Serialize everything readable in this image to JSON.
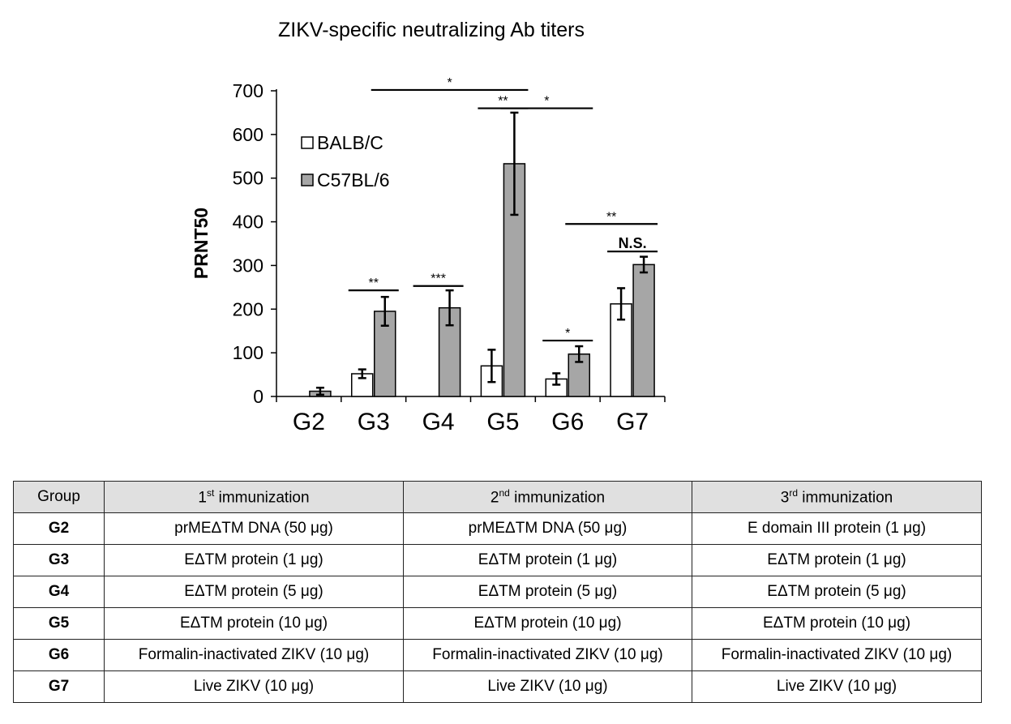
{
  "chart_data": {
    "type": "bar",
    "title": "ZIKV-specific neutralizing Ab titers",
    "ylabel": "PRNT50",
    "xlabel": "",
    "ylim": [
      0,
      700
    ],
    "yticks": [
      0,
      100,
      200,
      300,
      400,
      500,
      600,
      700
    ],
    "categories": [
      "G2",
      "G3",
      "G4",
      "G5",
      "G6",
      "G7"
    ],
    "legend_position": "top-left",
    "series": [
      {
        "name": "BALB/C",
        "color": "#ffffff",
        "values": [
          0,
          52,
          0,
          70,
          40,
          212
        ],
        "errors": [
          0,
          10,
          0,
          37,
          13,
          36
        ]
      },
      {
        "name": "C57BL/6",
        "color": "#a6a6a6",
        "values": [
          12,
          195,
          203,
          533,
          97,
          302
        ],
        "errors": [
          8,
          33,
          40,
          117,
          18,
          18
        ]
      }
    ],
    "annotations": [
      {
        "label": "**",
        "from": "G3-BALB/C",
        "to": "G3-C57BL/6",
        "y": 243
      },
      {
        "label": "***",
        "from": "G4-BALB/C",
        "to": "G4-C57BL/6",
        "y": 253
      },
      {
        "label": "*",
        "from": "G6-BALB/C",
        "to": "G6-C57BL/6",
        "y": 128
      },
      {
        "label": "N.S.",
        "from": "G7-BALB/C",
        "to": "G7-C57BL/6",
        "y": 332
      },
      {
        "label": "**",
        "from": "G5-BALB/C",
        "to": "G5-C57BL/6",
        "y": 660
      },
      {
        "label": "*",
        "from": "G3-C57BL/6",
        "to": "G5-C57BL/6",
        "y": 702
      },
      {
        "label": "*",
        "from": "G5-C57BL/6",
        "to": "G6-C57BL/6",
        "y": 660
      },
      {
        "label": "**",
        "from": "G6-C57BL/6",
        "to": "G7-C57BL/6",
        "y": 395
      }
    ]
  },
  "table": {
    "headers": {
      "group": "Group",
      "first_num": "1",
      "first_sup": "st",
      "first_rest": " immunization",
      "second_num": "2",
      "second_sup": "nd",
      "second_rest": " immunization",
      "third_num": "3",
      "third_sup": "rd",
      "third_rest": " immunization"
    },
    "rows": [
      {
        "group": "G2",
        "first": "prMEΔTM DNA (50 μg)",
        "second": "prMEΔTM DNA (50 μg)",
        "third": "E domain III protein  (1 μg)"
      },
      {
        "group": "G3",
        "first": "EΔTM protein (1 μg)",
        "second": "EΔTM protein (1 μg)",
        "third": "EΔTM protein (1 μg)"
      },
      {
        "group": "G4",
        "first": "EΔTM protein (5 μg)",
        "second": "EΔTM protein (5 μg)",
        "third": "EΔTM protein (5 μg)"
      },
      {
        "group": "G5",
        "first": "EΔTM protein (10 μg)",
        "second": "EΔTM protein (10 μg)",
        "third": "EΔTM protein (10 μg)"
      },
      {
        "group": "G6",
        "first": "Formalin-inactivated ZIKV (10 μg)",
        "second": "Formalin-inactivated ZIKV (10 μg)",
        "third": "Formalin-inactivated ZIKV (10 μg)"
      },
      {
        "group": "G7",
        "first": "Live ZIKV (10 μg)",
        "second": "Live ZIKV (10 μg)",
        "third": "Live ZIKV (10 μg)"
      }
    ]
  }
}
